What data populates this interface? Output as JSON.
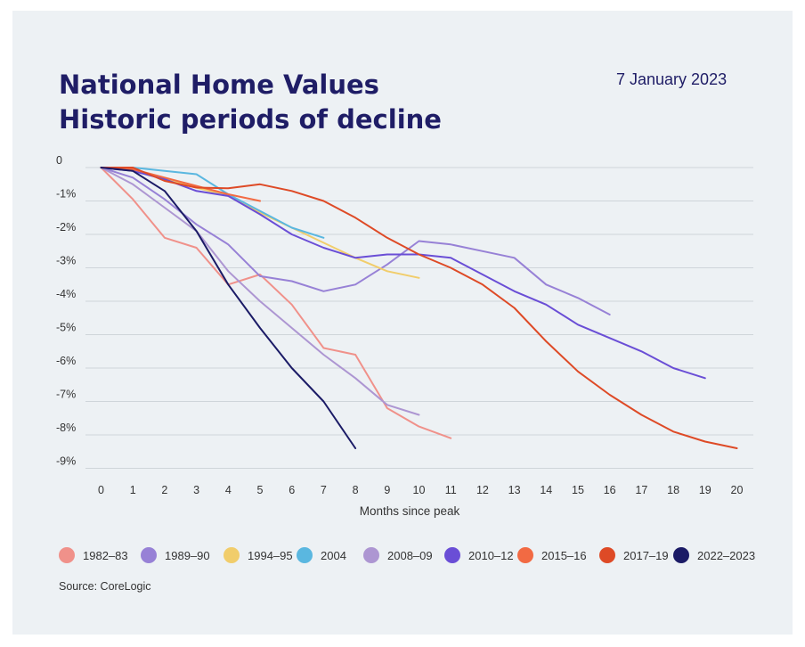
{
  "header": {
    "title_line1": "National Home Values",
    "title_line2": "Historic periods of decline",
    "date": "7 January 2023"
  },
  "source": "Source: CoreLogic",
  "chart_data": {
    "type": "line",
    "title": "National Home Values Historic periods of decline",
    "xlabel": "Months since peak",
    "ylabel": "",
    "xlim": [
      0,
      20
    ],
    "ylim": [
      -9,
      0
    ],
    "x_ticks": [
      "0",
      "1",
      "2",
      "3",
      "4",
      "5",
      "6",
      "7",
      "8",
      "9",
      "10",
      "11",
      "12",
      "13",
      "14",
      "15",
      "16",
      "17",
      "18",
      "19",
      "20"
    ],
    "y_ticks": [
      {
        "value": 0,
        "label": "0"
      },
      {
        "value": -1,
        "label": "-1%"
      },
      {
        "value": -2,
        "label": "-2%"
      },
      {
        "value": -3,
        "label": "-3%"
      },
      {
        "value": -4,
        "label": "-4%"
      },
      {
        "value": -5,
        "label": "-5%"
      },
      {
        "value": -6,
        "label": "-6%"
      },
      {
        "value": -7,
        "label": "-7%"
      },
      {
        "value": -8,
        "label": "-8%"
      },
      {
        "value": -9,
        "label": "-9%"
      }
    ],
    "grid": true,
    "legend_position": "bottom",
    "series": [
      {
        "name": "1982–83",
        "color": "#f0918a",
        "values": [
          0,
          -0.95,
          -2.1,
          -2.4,
          -3.5,
          -3.2,
          -4.1,
          -5.4,
          -5.6,
          -7.2,
          -7.75,
          -8.1
        ]
      },
      {
        "name": "1989–90",
        "color": "#9781d6",
        "values": [
          0,
          -0.3,
          -0.95,
          -1.7,
          -2.3,
          -3.25,
          -3.4,
          -3.7,
          -3.5,
          -2.9,
          -2.2,
          -2.3,
          -2.5,
          -2.7,
          -3.5,
          -3.9,
          -4.4
        ]
      },
      {
        "name": "1994–95",
        "color": "#f1cd6b",
        "values": [
          0,
          -0.05,
          -0.35,
          -0.6,
          -0.85,
          -1.35,
          -1.8,
          -2.25,
          -2.7,
          -3.1,
          -3.3
        ]
      },
      {
        "name": "2004",
        "color": "#5ab7e0",
        "values": [
          0,
          0,
          -0.1,
          -0.2,
          -0.8,
          -1.3,
          -1.8,
          -2.1
        ]
      },
      {
        "name": "2008–09",
        "color": "#ad96d2",
        "values": [
          0,
          -0.5,
          -1.2,
          -1.9,
          -3.1,
          -4.0,
          -4.8,
          -5.6,
          -6.3,
          -7.1,
          -7.4
        ]
      },
      {
        "name": "2010–12",
        "color": "#6a4ed6",
        "values": [
          0,
          -0.1,
          -0.35,
          -0.7,
          -0.85,
          -1.4,
          -2.0,
          -2.4,
          -2.7,
          -2.6,
          -2.6,
          -2.7,
          -3.2,
          -3.7,
          -4.1,
          -4.7,
          -5.1,
          -5.5,
          -6.0,
          -6.3
        ]
      },
      {
        "name": "2015–16",
        "color": "#f26a43",
        "values": [
          0,
          -0.05,
          -0.3,
          -0.55,
          -0.8,
          -1.0
        ]
      },
      {
        "name": "2017–19",
        "color": "#de4a26",
        "values": [
          0,
          0,
          -0.4,
          -0.6,
          -0.62,
          -0.5,
          -0.7,
          -1.0,
          -1.5,
          -2.1,
          -2.6,
          -3.0,
          -3.5,
          -4.2,
          -5.2,
          -6.1,
          -6.8,
          -7.4,
          -7.9,
          -8.2,
          -8.4
        ]
      },
      {
        "name": "2022–2023",
        "color": "#1b1b66",
        "values": [
          0,
          -0.1,
          -0.7,
          -1.9,
          -3.5,
          -4.8,
          -6.0,
          -7.0,
          -8.4
        ]
      }
    ]
  }
}
